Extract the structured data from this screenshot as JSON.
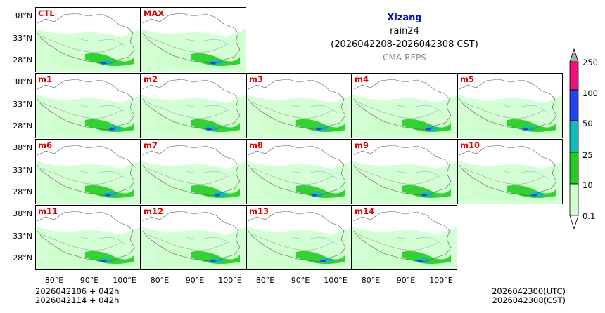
{
  "title": {
    "region": "Xizang",
    "variable": "rain24",
    "period": "(2026042208-2026042308 CST)",
    "model": "CMA-REPS"
  },
  "panels": [
    "CTL",
    "MAX",
    "m1",
    "m2",
    "m3",
    "m4",
    "m5",
    "m6",
    "m7",
    "m8",
    "m9",
    "m10",
    "m11",
    "m12",
    "m13",
    "m14"
  ],
  "lat_ticks": [
    "38°N",
    "33°N",
    "28°N"
  ],
  "lon_ticks": [
    "80°E",
    "90°E",
    "100°E"
  ],
  "colorbar": {
    "levels": [
      "0.1",
      "10",
      "25",
      "50",
      "100",
      "250"
    ],
    "colors": [
      "#ccffcc",
      "#22cc22",
      "#11bbbb",
      "#2244ee",
      "#ee1177",
      "#aaaaaa"
    ]
  },
  "footer": {
    "init_utc": "2026042106  +  042h",
    "init_cst": "2026042114  +  042h",
    "valid_utc": "2026042300(UTC)",
    "valid_cst": "2026042308(CST)"
  }
}
